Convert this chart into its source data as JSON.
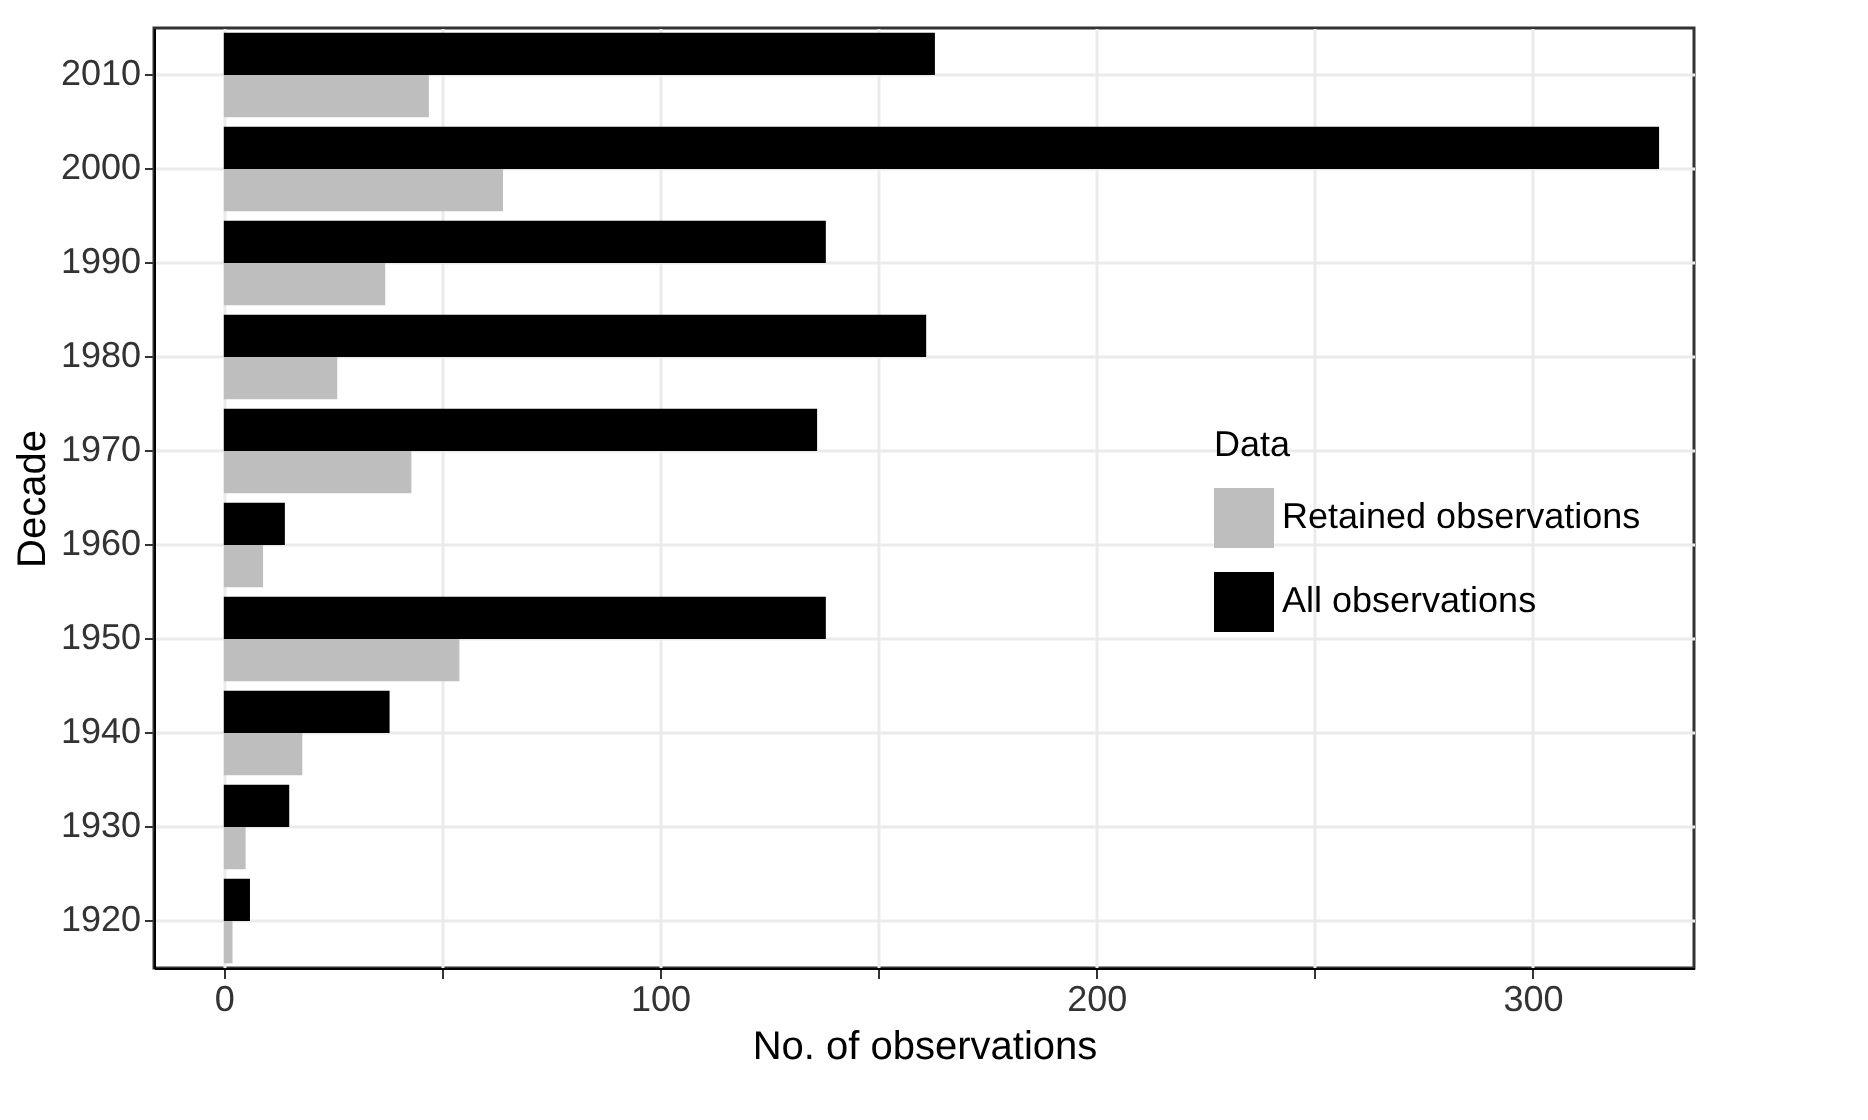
{
  "chart_data": {
    "type": "bar",
    "orientation": "horizontal",
    "xlabel": "No. of observations",
    "ylabel": "Decade",
    "legend_title": "Data",
    "categories": [
      "2010",
      "2000",
      "1990",
      "1980",
      "1970",
      "1960",
      "1950",
      "1940",
      "1930",
      "1920"
    ],
    "series": [
      {
        "name": "Retained observations",
        "color": "#bebebe",
        "values": [
          47,
          64,
          37,
          26,
          43,
          9,
          54,
          18,
          5,
          2
        ]
      },
      {
        "name": "All observations",
        "color": "#000000",
        "values": [
          163,
          329,
          138,
          161,
          136,
          14,
          138,
          38,
          15,
          6
        ]
      }
    ],
    "xlim": [
      -16,
      337
    ],
    "xticks": [
      0,
      {
        "value": 50,
        "label": null
      },
      100,
      {
        "value": 150,
        "label": null
      },
      200,
      {
        "value": 250,
        "label": null
      },
      300
    ],
    "grid": true,
    "legend": "right"
  }
}
